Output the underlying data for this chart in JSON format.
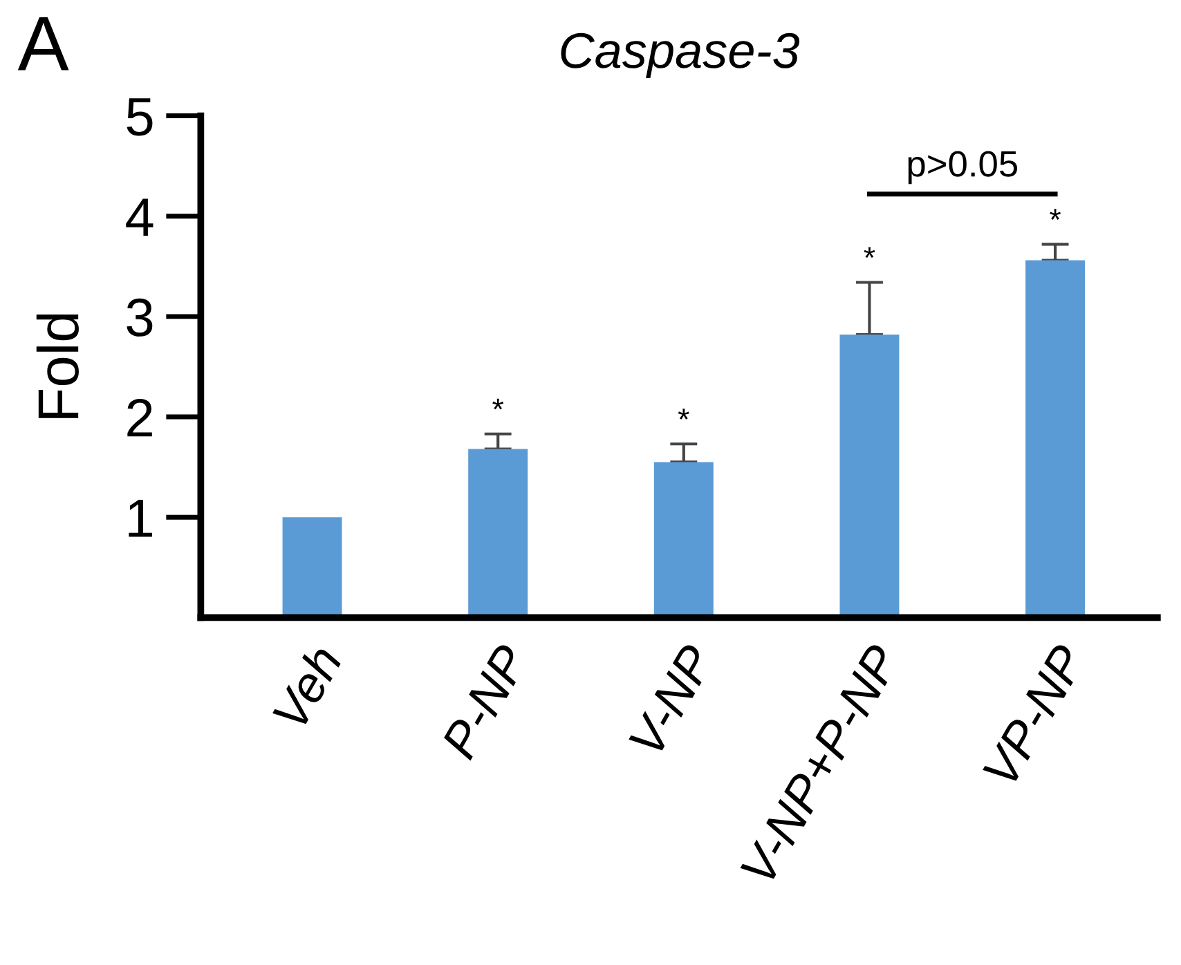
{
  "chart_data": {
    "type": "bar",
    "title": "Caspase-3",
    "ylabel": "Fold",
    "categories": [
      "Veh",
      "P-NP",
      "V-NP",
      "V-NP+P-NP",
      "VP-NP"
    ],
    "values": [
      1.0,
      1.68,
      1.55,
      2.82,
      3.56
    ],
    "errors": [
      null,
      [
        1.68,
        1.83
      ],
      [
        1.55,
        1.73
      ],
      [
        2.82,
        3.34
      ],
      [
        3.56,
        3.72
      ]
    ],
    "color": "#5b9bd5",
    "ylim": [
      0,
      5
    ],
    "yticks": [
      1,
      2,
      3,
      4,
      5
    ],
    "grid": false,
    "annotations": [
      "A",
      "*",
      "*",
      "*",
      "*",
      "p>0.05"
    ]
  }
}
